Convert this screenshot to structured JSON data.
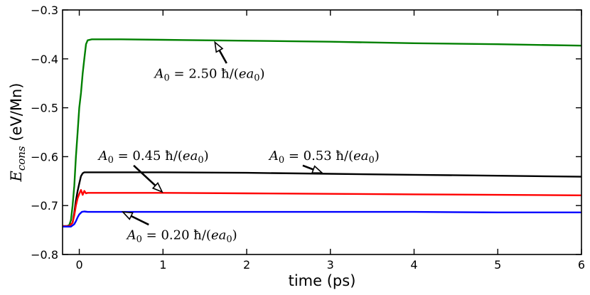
{
  "chart_data": {
    "type": "line",
    "xlabel": "time (ps)",
    "ylabel_main": "E",
    "ylabel_sub": "cons",
    "ylabel_unit": " (eV/Mn)",
    "xlim": [
      -0.2,
      6.0
    ],
    "ylim": [
      -0.8,
      -0.3
    ],
    "x_ticks": [
      0,
      1,
      2,
      3,
      4,
      5,
      6
    ],
    "x_tick_labels": [
      "0",
      "1",
      "2",
      "3",
      "4",
      "5",
      "6"
    ],
    "y_ticks": [
      -0.8,
      -0.7,
      -0.6,
      -0.5,
      -0.4,
      -0.3
    ],
    "y_tick_labels": [
      "−0.8",
      "−0.7",
      "−0.6",
      "−0.5",
      "−0.4",
      "−0.3"
    ],
    "grid": false,
    "legend": "none",
    "series": [
      {
        "color": "#008000",
        "x": [
          -0.2,
          -0.15,
          -0.12,
          -0.1,
          -0.08,
          -0.06,
          -0.04,
          -0.02,
          0.0,
          0.02,
          0.04,
          0.06,
          0.08,
          0.1,
          0.15,
          0.5,
          1.0,
          2.0,
          3.0,
          4.0,
          5.0,
          6.0
        ],
        "y": [
          -0.742,
          -0.742,
          -0.74,
          -0.73,
          -0.7,
          -0.66,
          -0.6,
          -0.55,
          -0.5,
          -0.47,
          -0.43,
          -0.4,
          -0.37,
          -0.362,
          -0.36,
          -0.36,
          -0.361,
          -0.363,
          -0.365,
          -0.368,
          -0.37,
          -0.373
        ]
      },
      {
        "color": "#000000",
        "x": [
          -0.2,
          -0.12,
          -0.08,
          -0.06,
          -0.04,
          -0.02,
          0.0,
          0.02,
          0.04,
          0.06,
          0.1,
          0.5,
          1.0,
          2.0,
          3.0,
          4.0,
          5.0,
          6.0
        ],
        "y": [
          -0.742,
          -0.742,
          -0.735,
          -0.715,
          -0.69,
          -0.67,
          -0.655,
          -0.64,
          -0.634,
          -0.632,
          -0.632,
          -0.632,
          -0.632,
          -0.633,
          -0.635,
          -0.637,
          -0.639,
          -0.641
        ]
      },
      {
        "color": "#ff0000",
        "x": [
          -0.2,
          -0.12,
          -0.08,
          -0.06,
          -0.04,
          -0.02,
          0.0,
          0.02,
          0.04,
          0.06,
          0.08,
          0.1,
          0.5,
          1.0,
          2.0,
          3.0,
          4.0,
          5.0,
          6.0
        ],
        "y": [
          -0.742,
          -0.742,
          -0.735,
          -0.72,
          -0.7,
          -0.685,
          -0.676,
          -0.668,
          -0.678,
          -0.67,
          -0.675,
          -0.674,
          -0.674,
          -0.674,
          -0.675,
          -0.676,
          -0.677,
          -0.678,
          -0.679
        ]
      },
      {
        "color": "#0000ff",
        "x": [
          -0.2,
          -0.1,
          -0.06,
          -0.04,
          -0.02,
          0.0,
          0.03,
          0.06,
          0.1,
          0.5,
          1.0,
          2.0,
          3.0,
          4.0,
          5.0,
          6.0
        ],
        "y": [
          -0.743,
          -0.743,
          -0.738,
          -0.732,
          -0.724,
          -0.718,
          -0.713,
          -0.712,
          -0.713,
          -0.713,
          -0.713,
          -0.713,
          -0.713,
          -0.713,
          -0.714,
          -0.714
        ]
      }
    ],
    "annotations": [
      {
        "prefix": "A",
        "sub": "0",
        "rest": " = 2.50 ħ/(",
        "it": "ea",
        "itsub": "0",
        "close": ")",
        "text_x": 0.9,
        "text_y": -0.43,
        "arrow_tail_x": 1.76,
        "arrow_tail_y": -0.409,
        "arrow_head_x": 1.62,
        "arrow_head_y": -0.366
      },
      {
        "prefix": "A",
        "sub": "0",
        "rest": " = 0.45 ħ/(",
        "it": "ea",
        "itsub": "0",
        "close": ")",
        "text_x": 0.23,
        "text_y": -0.598,
        "arrow_tail_x": 0.65,
        "arrow_tail_y": -0.618,
        "arrow_head_x": 0.99,
        "arrow_head_y": -0.672
      },
      {
        "prefix": "A",
        "sub": "0",
        "rest": " = 0.53 ħ/(",
        "it": "ea",
        "itsub": "0",
        "close": ")",
        "text_x": 2.27,
        "text_y": -0.598,
        "arrow_tail_x": 2.67,
        "arrow_tail_y": -0.618,
        "arrow_head_x": 2.9,
        "arrow_head_y": -0.633
      },
      {
        "prefix": "A",
        "sub": "0",
        "rest": " = 0.20 ħ/(",
        "it": "ea",
        "itsub": "0",
        "close": ")",
        "text_x": 0.57,
        "text_y": -0.76,
        "arrow_tail_x": 0.83,
        "arrow_tail_y": -0.739,
        "arrow_head_x": 0.52,
        "arrow_head_y": -0.713
      }
    ]
  }
}
